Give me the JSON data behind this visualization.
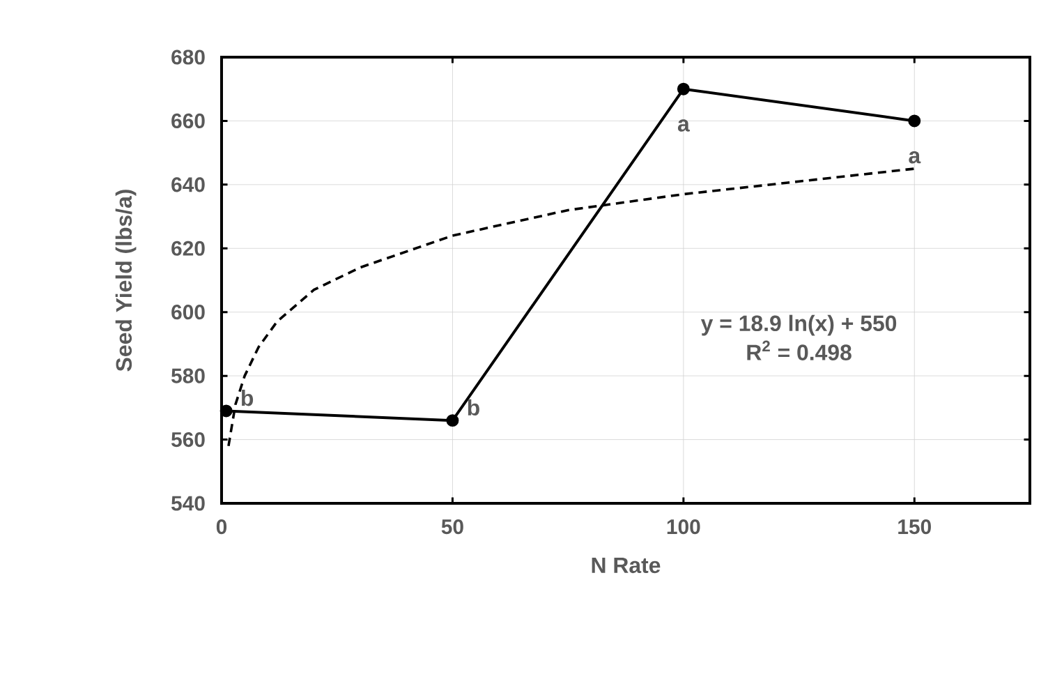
{
  "chart_data": {
    "type": "line",
    "xlabel": "N Rate",
    "ylabel": "Seed Yield (lbs/a)",
    "xlim": [
      0,
      175
    ],
    "ylim": [
      540,
      680
    ],
    "xticks": [
      0,
      50,
      100,
      150
    ],
    "yticks": [
      540,
      560,
      580,
      600,
      620,
      640,
      660,
      680
    ],
    "grid": true,
    "series": [
      {
        "color": "#000000",
        "marker": "circle",
        "line_style": "solid",
        "x": [
          1,
          50,
          100,
          150
        ],
        "values": [
          569,
          566,
          670,
          660
        ]
      },
      {
        "color": "#000000",
        "marker": "none",
        "line_style": "dashed",
        "x": [
          1.5,
          3,
          5,
          8,
          12,
          20,
          30,
          50,
          75,
          100,
          125,
          150
        ],
        "values": [
          558,
          571,
          580,
          589,
          597,
          607,
          614,
          624,
          632,
          637,
          641,
          645
        ]
      }
    ],
    "annotations": [
      {
        "text": "b",
        "x": 1,
        "y": 569
      },
      {
        "text": "b",
        "x": 50,
        "y": 566
      },
      {
        "text": "a",
        "x": 100,
        "y": 670
      },
      {
        "text": "a",
        "x": 150,
        "y": 660
      },
      "y = 18.9 ln(x) + 550",
      "R$^{2}$ = 0.498"
    ]
  }
}
